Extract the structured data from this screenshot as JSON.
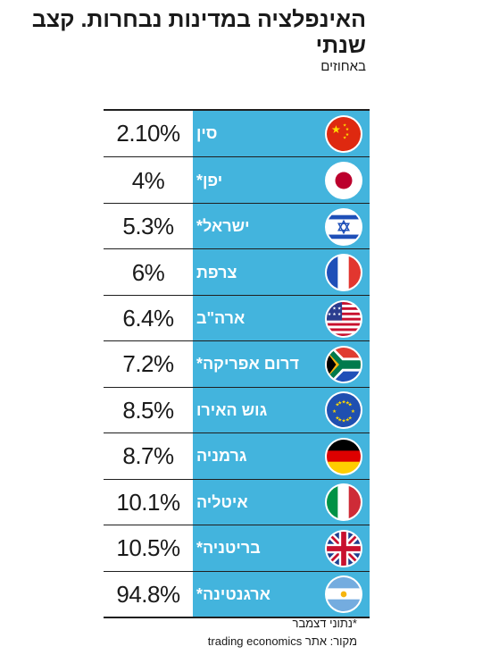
{
  "title": "האינפלציה במדינות נבחרות. קצב שנתי",
  "subtitle": "באחוזים",
  "chart_data": {
    "type": "table",
    "title": "האינפלציה במדינות נבחרות. קצב שנתי",
    "unit": "באחוזים",
    "rows": [
      {
        "country": "סין",
        "value_label": "2.10%",
        "value": 2.1,
        "flag": "china-flag-icon"
      },
      {
        "country": "יפן*",
        "value_label": "4%",
        "value": 4,
        "flag": "japan-flag-icon"
      },
      {
        "country": "ישראל*",
        "value_label": "5.3%",
        "value": 5.3,
        "flag": "israel-flag-icon"
      },
      {
        "country": "צרפת",
        "value_label": "6%",
        "value": 6,
        "flag": "france-flag-icon"
      },
      {
        "country": "ארה\"ב",
        "value_label": "6.4%",
        "value": 6.4,
        "flag": "usa-flag-icon"
      },
      {
        "country": "דרום אפריקה*",
        "value_label": "7.2%",
        "value": 7.2,
        "flag": "south-africa-flag-icon"
      },
      {
        "country": "גוש האירו",
        "value_label": "8.5%",
        "value": 8.5,
        "flag": "eu-flag-icon"
      },
      {
        "country": "גרמניה",
        "value_label": "8.7%",
        "value": 8.7,
        "flag": "germany-flag-icon"
      },
      {
        "country": "איטליה",
        "value_label": "10.1%",
        "value": 10.1,
        "flag": "italy-flag-icon"
      },
      {
        "country": "בריטניה*",
        "value_label": "10.5%",
        "value": 10.5,
        "flag": "uk-flag-icon"
      },
      {
        "country": "ארגנטינה*",
        "value_label": "94.8%",
        "value": 94.8,
        "flag": "argentina-flag-icon"
      }
    ]
  },
  "footnote": "*נתוני דצמבר",
  "source": "מקור: אתר trading economics",
  "colors": {
    "band": "#43b4dd",
    "text": "#1a1a1a"
  }
}
